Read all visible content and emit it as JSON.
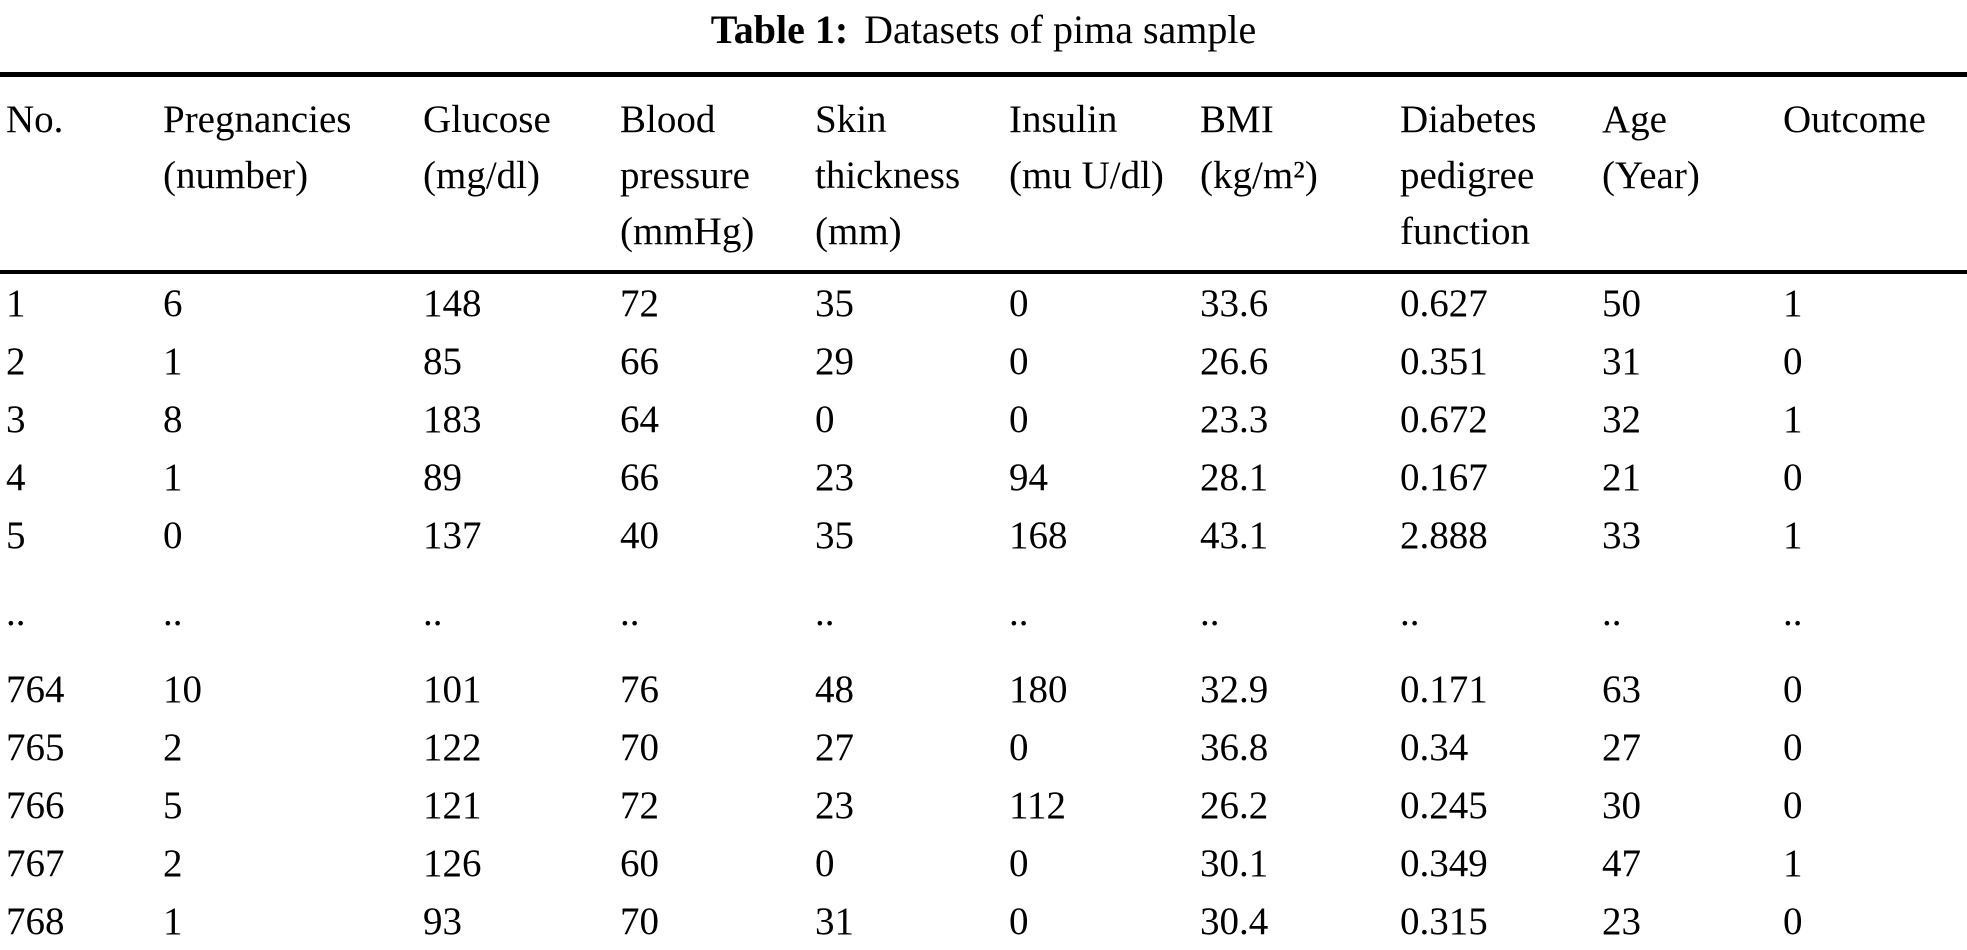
{
  "title": {
    "label": "Table 1:",
    "text": "Datasets of pima sample"
  },
  "colors": {
    "text": "#000000",
    "background": "#ffffff",
    "rule": "#000000"
  },
  "table": {
    "columns": [
      {
        "name": "No.",
        "unit": ""
      },
      {
        "name": "Pregnancies",
        "unit": "(number)"
      },
      {
        "name": "Glucose",
        "unit": "(mg/dl)"
      },
      {
        "name": "Blood pressure",
        "unit": "(mmHg)"
      },
      {
        "name": "Skin thickness",
        "unit": "(mm)"
      },
      {
        "name": "Insulin",
        "unit": "(mu U/dl)"
      },
      {
        "name": "BMI",
        "unit": "(kg/m²)"
      },
      {
        "name": "Diabetes pedigree function",
        "unit": ""
      },
      {
        "name": "Age",
        "unit": "(Year)"
      },
      {
        "name": "Outcome",
        "unit": ""
      }
    ],
    "rows": [
      [
        "1",
        "6",
        "148",
        "72",
        "35",
        "0",
        "33.6",
        "0.627",
        "50",
        "1"
      ],
      [
        "2",
        "1",
        "85",
        "66",
        "29",
        "0",
        "26.6",
        "0.351",
        "31",
        "0"
      ],
      [
        "3",
        "8",
        "183",
        "64",
        "0",
        "0",
        "23.3",
        "0.672",
        "32",
        "1"
      ],
      [
        "4",
        "1",
        "89",
        "66",
        "23",
        "94",
        "28.1",
        "0.167",
        "21",
        "0"
      ],
      [
        "5",
        "0",
        "137",
        "40",
        "35",
        "168",
        "43.1",
        "2.888",
        "33",
        "1"
      ],
      [
        "..",
        "..",
        "..",
        "..",
        "..",
        "..",
        "..",
        "..",
        "..",
        ".."
      ],
      [
        "764",
        "10",
        "101",
        "76",
        "48",
        "180",
        "32.9",
        "0.171",
        "63",
        "0"
      ],
      [
        "765",
        "2",
        "122",
        "70",
        "27",
        "0",
        "36.8",
        "0.34",
        "27",
        "0"
      ],
      [
        "766",
        "5",
        "121",
        "72",
        "23",
        "112",
        "26.2",
        "0.245",
        "30",
        "0"
      ],
      [
        "767",
        "2",
        "126",
        "60",
        "0",
        "0",
        "30.1",
        "0.349",
        "47",
        "1"
      ],
      [
        "768",
        "1",
        "93",
        "70",
        "31",
        "0",
        "30.4",
        "0.315",
        "23",
        "0"
      ]
    ]
  }
}
